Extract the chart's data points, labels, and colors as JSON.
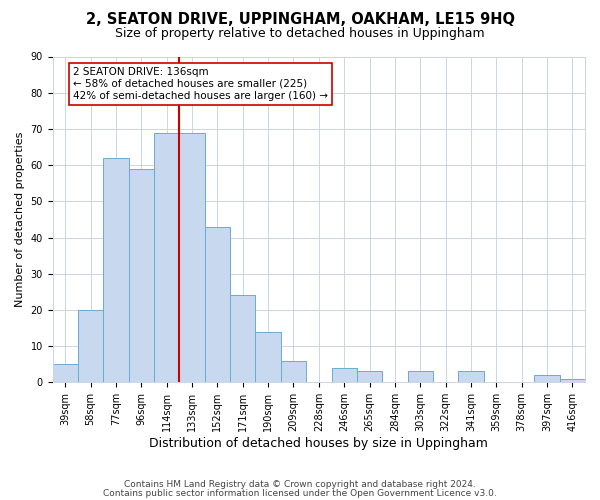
{
  "title": "2, SEATON DRIVE, UPPINGHAM, OAKHAM, LE15 9HQ",
  "subtitle": "Size of property relative to detached houses in Uppingham",
  "xlabel": "Distribution of detached houses by size in Uppingham",
  "ylabel": "Number of detached properties",
  "bar_labels": [
    "39sqm",
    "58sqm",
    "77sqm",
    "96sqm",
    "114sqm",
    "133sqm",
    "152sqm",
    "171sqm",
    "190sqm",
    "209sqm",
    "228sqm",
    "246sqm",
    "265sqm",
    "284sqm",
    "303sqm",
    "322sqm",
    "341sqm",
    "359sqm",
    "378sqm",
    "397sqm",
    "416sqm"
  ],
  "bar_values": [
    5,
    20,
    62,
    59,
    69,
    69,
    43,
    24,
    14,
    6,
    0,
    4,
    3,
    0,
    3,
    0,
    3,
    0,
    0,
    2,
    1
  ],
  "bar_color": "#c8d8ee",
  "bar_edge_color": "#6aaad4",
  "vline_x": 5.0,
  "vline_color": "#cc0000",
  "ylim": [
    0,
    90
  ],
  "yticks": [
    0,
    10,
    20,
    30,
    40,
    50,
    60,
    70,
    80,
    90
  ],
  "annotation_text": "2 SEATON DRIVE: 136sqm\n← 58% of detached houses are smaller (225)\n42% of semi-detached houses are larger (160) →",
  "annotation_box_edgecolor": "#cc0000",
  "annotation_box_facecolor": "#ffffff",
  "footer_line1": "Contains HM Land Registry data © Crown copyright and database right 2024.",
  "footer_line2": "Contains public sector information licensed under the Open Government Licence v3.0.",
  "title_fontsize": 10.5,
  "subtitle_fontsize": 9,
  "xlabel_fontsize": 9,
  "ylabel_fontsize": 8,
  "tick_fontsize": 7,
  "annotation_fontsize": 7.5,
  "footer_fontsize": 6.5,
  "background_color": "#ffffff",
  "grid_color": "#ccd5e8"
}
